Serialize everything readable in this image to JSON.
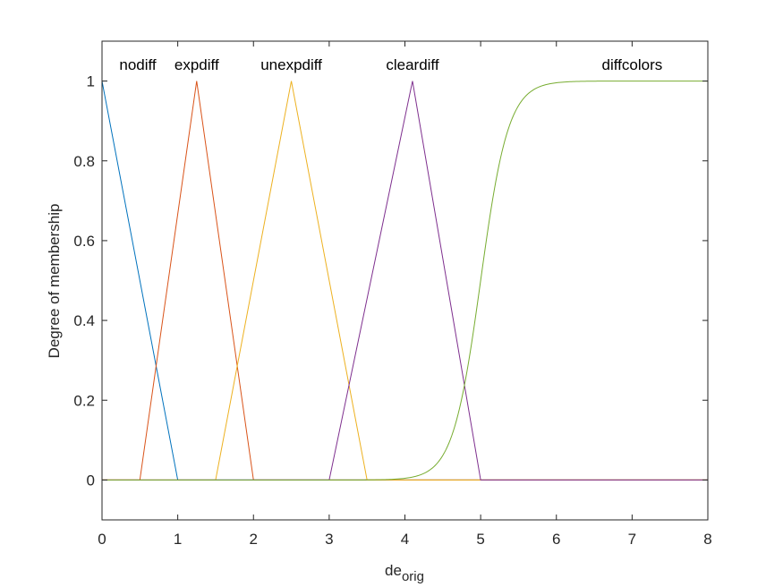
{
  "chart_data": {
    "type": "line",
    "title": "",
    "xlabel": "de",
    "xlabel_subscript": "orig",
    "ylabel": "Degree of membership",
    "xlim": [
      0,
      8
    ],
    "ylim": [
      -0.1,
      1.1
    ],
    "xticks": [
      "0",
      "1",
      "2",
      "3",
      "4",
      "5",
      "6",
      "7",
      "8"
    ],
    "yticks": [
      "0",
      "0.2",
      "0.4",
      "0.6",
      "0.8",
      "1"
    ],
    "grid": false,
    "series": [
      {
        "name": "nodiff",
        "color": "#0072BD",
        "x": [
          0,
          1,
          8
        ],
        "y": [
          1,
          0,
          0
        ]
      },
      {
        "name": "expdiff",
        "color": "#D95319",
        "x": [
          0,
          0.5,
          1.25,
          2,
          8
        ],
        "y": [
          0,
          0,
          1,
          0,
          0
        ]
      },
      {
        "name": "unexpdiff",
        "color": "#EDB120",
        "x": [
          0,
          1.5,
          2.5,
          3.5,
          8
        ],
        "y": [
          0,
          0,
          1,
          0,
          0
        ]
      },
      {
        "name": "cleardiff",
        "color": "#7E2F8E",
        "x": [
          0,
          3,
          4.1,
          5,
          8
        ],
        "y": [
          0,
          0,
          1,
          0,
          0
        ]
      },
      {
        "name": "diffcolors",
        "color": "#77AC30",
        "function": "sigmoid",
        "x": [
          0,
          3.5,
          4,
          4.5,
          4.8,
          5,
          5.2,
          5.5,
          6,
          6.5,
          8
        ],
        "y": [
          0,
          0.001,
          0.006,
          0.05,
          0.17,
          0.38,
          0.62,
          0.88,
          0.99,
          1,
          1
        ]
      }
    ]
  }
}
